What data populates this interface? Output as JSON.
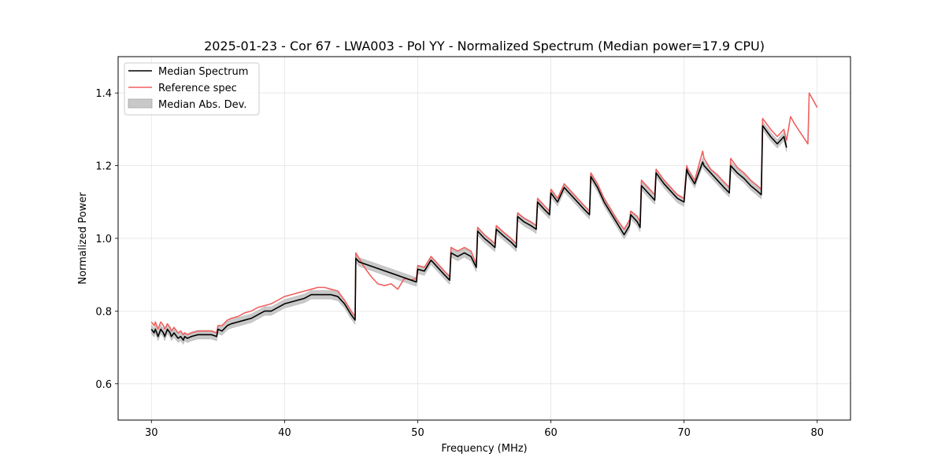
{
  "chart_data": {
    "type": "line",
    "title": "2025-01-23 - Cor 67 - LWA003 - Pol YY - Normalized Spectrum (Median power=17.9 CPU)",
    "xlabel": "Frequency (MHz)",
    "ylabel": "Normalized Power",
    "xlim": [
      27.5,
      82.5
    ],
    "ylim": [
      0.5,
      1.5
    ],
    "xticks": [
      30,
      40,
      50,
      60,
      70,
      80
    ],
    "yticks": [
      0.6,
      0.8,
      1.0,
      1.2,
      1.4
    ],
    "xtick_labels": [
      "30",
      "40",
      "50",
      "60",
      "70",
      "80"
    ],
    "ytick_labels": [
      "0.6",
      "0.8",
      "1.0",
      "1.2",
      "1.4"
    ],
    "grid": true,
    "legend": {
      "location": "top-left",
      "entries": [
        {
          "label": "Median Spectrum",
          "kind": "line",
          "color": "#000000"
        },
        {
          "label": "Reference spec",
          "kind": "line",
          "color": "#f06060"
        },
        {
          "label": "Median Abs. Dev.",
          "kind": "patch",
          "color": "#c8c8c8"
        }
      ]
    },
    "series": [
      {
        "name": "Median Spectrum",
        "color": "#000000",
        "x": [
          30.0,
          30.2,
          30.3,
          30.5,
          30.7,
          30.9,
          31.0,
          31.2,
          31.4,
          31.5,
          31.7,
          31.9,
          32.0,
          32.2,
          32.4,
          32.5,
          32.7,
          33.0,
          33.5,
          34.0,
          34.5,
          34.9,
          35.0,
          35.3,
          35.7,
          36.0,
          36.5,
          37.0,
          37.5,
          38.0,
          38.5,
          39.0,
          39.5,
          40.0,
          40.5,
          41.0,
          41.5,
          42.0,
          42.5,
          43.0,
          43.5,
          44.0,
          44.5,
          45.0,
          45.3,
          45.35,
          45.6,
          49.9,
          50.0,
          50.5,
          51.0,
          51.5,
          52.0,
          52.4,
          52.5,
          53.0,
          53.5,
          54.0,
          54.4,
          54.5,
          55.0,
          55.5,
          55.8,
          55.9,
          56.5,
          57.0,
          57.4,
          57.5,
          58.0,
          58.5,
          58.9,
          59.0,
          59.5,
          59.9,
          60.0,
          60.5,
          61.0,
          61.5,
          62.0,
          62.5,
          62.9,
          63.0,
          63.5,
          64.0,
          64.5,
          65.0,
          65.5,
          65.9,
          66.0,
          66.5,
          66.7,
          66.8,
          67.3,
          67.8,
          67.9,
          68.5,
          69.0,
          69.5,
          70.0,
          70.2,
          70.3,
          70.8,
          71.4,
          71.5,
          72.0,
          72.5,
          73.0,
          73.4,
          73.5,
          74.0,
          74.5,
          75.0,
          75.5,
          75.8,
          75.9,
          76.5,
          77.0,
          77.5,
          77.7
        ],
        "values": [
          0.75,
          0.74,
          0.75,
          0.73,
          0.75,
          0.74,
          0.73,
          0.75,
          0.74,
          0.73,
          0.74,
          0.73,
          0.725,
          0.73,
          0.72,
          0.73,
          0.725,
          0.73,
          0.735,
          0.735,
          0.735,
          0.73,
          0.75,
          0.745,
          0.76,
          0.765,
          0.77,
          0.775,
          0.78,
          0.79,
          0.8,
          0.8,
          0.81,
          0.82,
          0.825,
          0.83,
          0.835,
          0.845,
          0.845,
          0.845,
          0.845,
          0.84,
          0.82,
          0.79,
          0.775,
          0.945,
          0.935,
          0.88,
          0.915,
          0.91,
          0.94,
          0.92,
          0.9,
          0.885,
          0.96,
          0.95,
          0.96,
          0.95,
          0.92,
          1.02,
          1.0,
          0.985,
          0.975,
          1.025,
          1.005,
          0.99,
          0.975,
          1.06,
          1.045,
          1.035,
          1.025,
          1.1,
          1.08,
          1.065,
          1.125,
          1.1,
          1.14,
          1.12,
          1.1,
          1.08,
          1.065,
          1.17,
          1.14,
          1.1,
          1.07,
          1.04,
          1.01,
          1.035,
          1.065,
          1.045,
          1.03,
          1.145,
          1.125,
          1.105,
          1.18,
          1.15,
          1.13,
          1.11,
          1.1,
          1.19,
          1.18,
          1.15,
          1.21,
          1.2,
          1.18,
          1.16,
          1.14,
          1.125,
          1.2,
          1.18,
          1.165,
          1.145,
          1.13,
          1.12,
          1.31,
          1.28,
          1.26,
          1.28,
          1.25
        ]
      },
      {
        "name": "Reference spec",
        "color": "#f06060",
        "x": [
          30.0,
          30.2,
          30.3,
          30.5,
          30.7,
          30.9,
          31.0,
          31.2,
          31.4,
          31.5,
          31.7,
          31.9,
          32.0,
          32.2,
          32.4,
          32.5,
          32.7,
          33.0,
          33.5,
          34.0,
          34.5,
          34.9,
          35.0,
          35.3,
          35.7,
          36.0,
          36.5,
          37.0,
          37.5,
          38.0,
          38.5,
          39.0,
          39.5,
          40.0,
          40.5,
          41.0,
          41.5,
          42.0,
          42.5,
          43.0,
          43.5,
          44.0,
          44.5,
          45.0,
          45.3,
          45.35,
          45.6,
          46.0,
          46.5,
          47.0,
          47.5,
          48.0,
          48.5,
          49.0,
          49.5,
          49.9,
          50.0,
          50.5,
          51.0,
          51.5,
          52.0,
          52.4,
          52.5,
          53.0,
          53.5,
          54.0,
          54.4,
          54.5,
          55.0,
          55.5,
          55.8,
          55.9,
          56.5,
          57.0,
          57.4,
          57.5,
          58.0,
          58.5,
          58.9,
          59.0,
          59.5,
          59.9,
          60.0,
          60.5,
          61.0,
          61.5,
          62.0,
          62.5,
          62.9,
          63.0,
          63.5,
          64.0,
          64.5,
          65.0,
          65.5,
          65.9,
          66.0,
          66.5,
          66.7,
          66.8,
          67.3,
          67.8,
          67.9,
          68.5,
          69.0,
          69.5,
          70.0,
          70.2,
          70.3,
          70.8,
          71.4,
          71.5,
          72.0,
          72.5,
          73.0,
          73.4,
          73.5,
          74.0,
          74.5,
          75.0,
          75.5,
          75.8,
          75.9,
          76.5,
          77.0,
          77.5,
          77.7,
          78.0,
          78.3,
          79.3,
          79.4,
          80.0
        ],
        "values": [
          0.77,
          0.76,
          0.77,
          0.75,
          0.77,
          0.76,
          0.75,
          0.765,
          0.755,
          0.745,
          0.755,
          0.745,
          0.74,
          0.745,
          0.735,
          0.74,
          0.735,
          0.74,
          0.745,
          0.745,
          0.745,
          0.74,
          0.76,
          0.76,
          0.775,
          0.78,
          0.785,
          0.795,
          0.8,
          0.81,
          0.815,
          0.82,
          0.83,
          0.84,
          0.845,
          0.85,
          0.855,
          0.86,
          0.865,
          0.865,
          0.86,
          0.855,
          0.83,
          0.8,
          0.785,
          0.96,
          0.945,
          0.92,
          0.895,
          0.875,
          0.87,
          0.875,
          0.86,
          0.89,
          0.885,
          0.89,
          0.925,
          0.92,
          0.95,
          0.93,
          0.91,
          0.895,
          0.975,
          0.965,
          0.975,
          0.965,
          0.93,
          1.03,
          1.01,
          0.995,
          0.985,
          1.035,
          1.015,
          1.0,
          0.985,
          1.07,
          1.055,
          1.045,
          1.035,
          1.11,
          1.09,
          1.075,
          1.135,
          1.11,
          1.15,
          1.13,
          1.11,
          1.09,
          1.075,
          1.18,
          1.15,
          1.11,
          1.08,
          1.05,
          1.025,
          1.05,
          1.075,
          1.06,
          1.045,
          1.16,
          1.14,
          1.12,
          1.19,
          1.16,
          1.14,
          1.12,
          1.11,
          1.2,
          1.19,
          1.16,
          1.24,
          1.22,
          1.19,
          1.175,
          1.155,
          1.14,
          1.22,
          1.195,
          1.18,
          1.16,
          1.145,
          1.135,
          1.33,
          1.3,
          1.28,
          1.3,
          1.27,
          1.335,
          1.315,
          1.26,
          1.4,
          1.36
        ]
      }
    ],
    "band": {
      "name": "Median Abs. Dev.",
      "color": "#c8c8c8",
      "width": 0.012
    }
  }
}
